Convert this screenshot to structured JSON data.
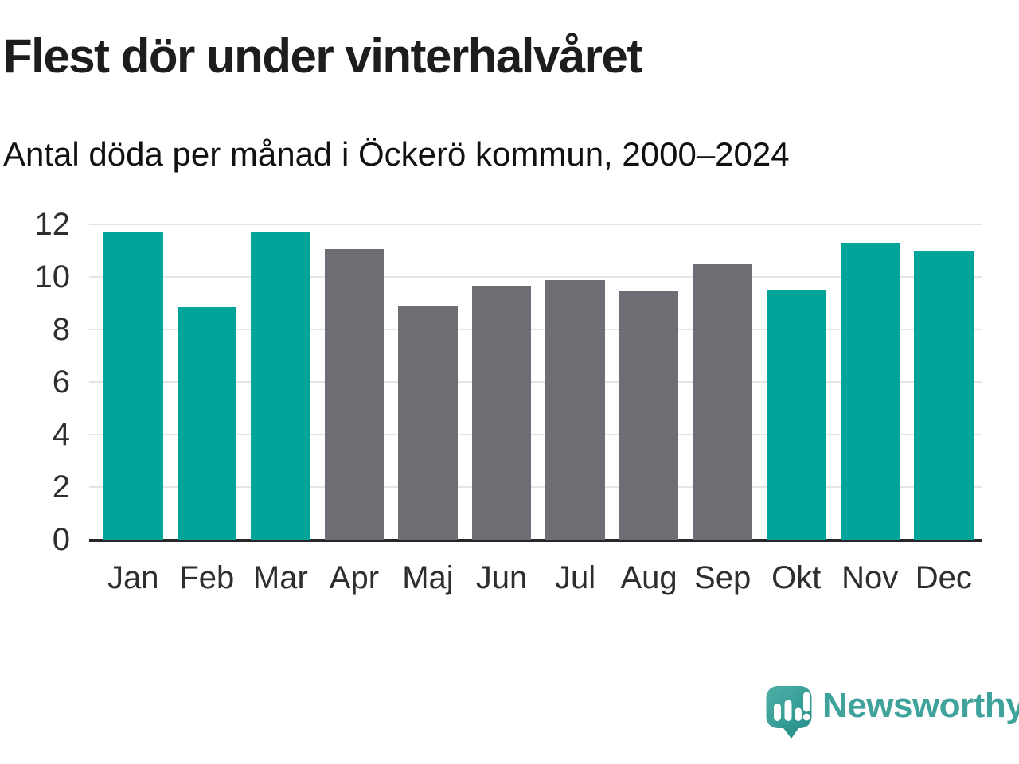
{
  "header": {
    "title": "Flest dör under vinterhalvåret",
    "subtitle": "Antal döda per månad i Öckerö kommun, 2000–2024"
  },
  "chart_data": {
    "type": "bar",
    "title": "Flest dör under vinterhalvåret",
    "subtitle": "Antal döda per månad i Öckerö kommun, 2000–2024",
    "categories": [
      "Jan",
      "Feb",
      "Mar",
      "Apr",
      "Maj",
      "Jun",
      "Jul",
      "Aug",
      "Sep",
      "Okt",
      "Nov",
      "Dec"
    ],
    "values": [
      11.7,
      8.85,
      11.72,
      11.05,
      8.88,
      9.64,
      9.88,
      9.46,
      10.47,
      9.52,
      11.3,
      11.0
    ],
    "bar_colors": [
      "teal",
      "teal",
      "teal",
      "gray",
      "gray",
      "gray",
      "gray",
      "gray",
      "gray",
      "teal",
      "teal",
      "teal"
    ],
    "colors": {
      "teal": "#00a499",
      "gray": "#6e6d73"
    },
    "xlabel": "",
    "ylabel": "",
    "ylim": [
      0,
      12
    ],
    "yticks": [
      0,
      2,
      4,
      6,
      8,
      10,
      12
    ],
    "grid": "horizontal-light",
    "legend": "none"
  },
  "footer": {
    "brand": "Newsworthy",
    "brand_icon": "newsworthy-speech-bubble-barchart-icon"
  },
  "style": {
    "background": "#ffffff",
    "gridline_color": "#e4e4e4",
    "axis_color": "#26262b",
    "tick_text_color": "#2e2e2e",
    "title_color": "#1d1d1b",
    "logo_color": "#3fa29b"
  }
}
